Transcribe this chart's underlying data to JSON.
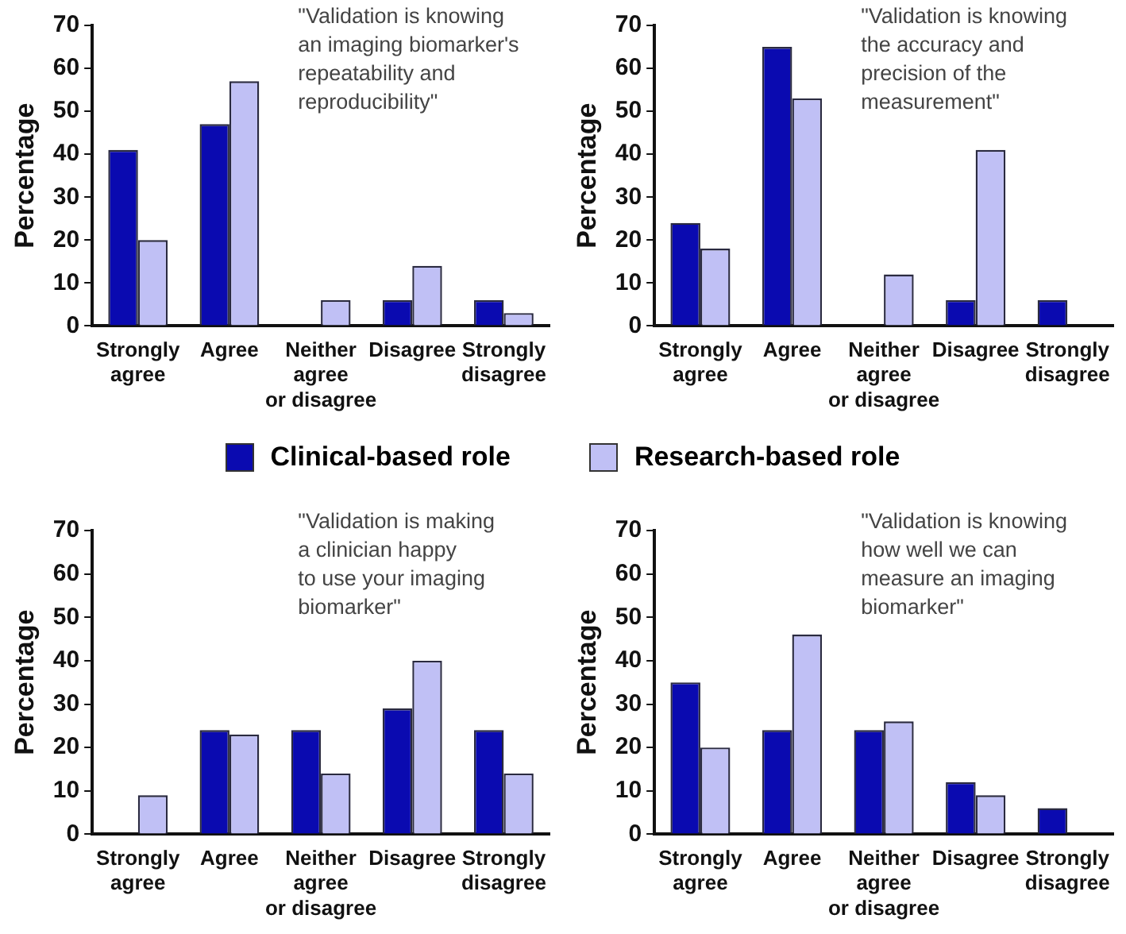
{
  "chart_data": [
    {
      "type": "bar",
      "ylabel": "Percentage",
      "categories": [
        "Strongly agree",
        "Agree",
        "Neither agree or disagree",
        "Disagree",
        "Strongly disagree"
      ],
      "ylim": [
        0,
        70
      ],
      "yticks": [
        0,
        10,
        20,
        30,
        40,
        50,
        60,
        70
      ],
      "grid": false,
      "legend": "bottom",
      "annotations": [
        "\"Validation is knowing\nan imaging biomarker's\nrepeatability and\nreproducibility\""
      ],
      "series": [
        {
          "name": "Clinical-based role",
          "color": "#0a0ab0",
          "values": [
            41,
            47,
            0,
            6,
            6
          ]
        },
        {
          "name": "Research-based role",
          "color": "#c0c0f5",
          "values": [
            20,
            57,
            6,
            14,
            3
          ]
        }
      ]
    },
    {
      "type": "bar",
      "ylabel": "Percentage",
      "categories": [
        "Strongly agree",
        "Agree",
        "Neither agree or disagree",
        "Disagree",
        "Strongly disagree"
      ],
      "ylim": [
        0,
        70
      ],
      "yticks": [
        0,
        10,
        20,
        30,
        40,
        50,
        60,
        70
      ],
      "grid": false,
      "annotations": [
        "\"Validation is knowing\nthe accuracy and\nprecision of the\nmeasurement\""
      ],
      "series": [
        {
          "color": "#0a0ab0",
          "values": [
            24,
            65,
            0,
            6,
            6
          ]
        },
        {
          "color": "#c0c0f5",
          "values": [
            18,
            53,
            12,
            41,
            0
          ]
        }
      ]
    },
    {
      "type": "bar",
      "ylabel": "Percentage",
      "categories": [
        "Strongly agree",
        "Agree",
        "Neither agree or disagree",
        "Disagree",
        "Strongly disagree"
      ],
      "ylim": [
        0,
        70
      ],
      "yticks": [
        0,
        10,
        20,
        30,
        40,
        50,
        60,
        70
      ],
      "grid": false,
      "annotations": [
        "\"Validation is making\na clinician happy\nto use your imaging\nbiomarker\""
      ],
      "series": [
        {
          "color": "#0a0ab0",
          "values": [
            0,
            24,
            24,
            29,
            24
          ]
        },
        {
          "color": "#c0c0f5",
          "values": [
            9,
            23,
            14,
            40,
            14
          ]
        }
      ]
    },
    {
      "type": "bar",
      "ylabel": "Percentage",
      "categories": [
        "Strongly agree",
        "Agree",
        "Neither agree or disagree",
        "Disagree",
        "Strongly disagree"
      ],
      "ylim": [
        0,
        70
      ],
      "yticks": [
        0,
        10,
        20,
        30,
        40,
        50,
        60,
        70
      ],
      "grid": false,
      "annotations": [
        "\"Validation is knowing\nhow well we can\nmeasure an imaging\nbiomarker\""
      ],
      "series": [
        {
          "color": "#0a0ab0",
          "values": [
            35,
            24,
            24,
            12,
            6
          ]
        },
        {
          "color": "#c0c0f5",
          "values": [
            20,
            46,
            26,
            9,
            0
          ]
        }
      ]
    }
  ]
}
